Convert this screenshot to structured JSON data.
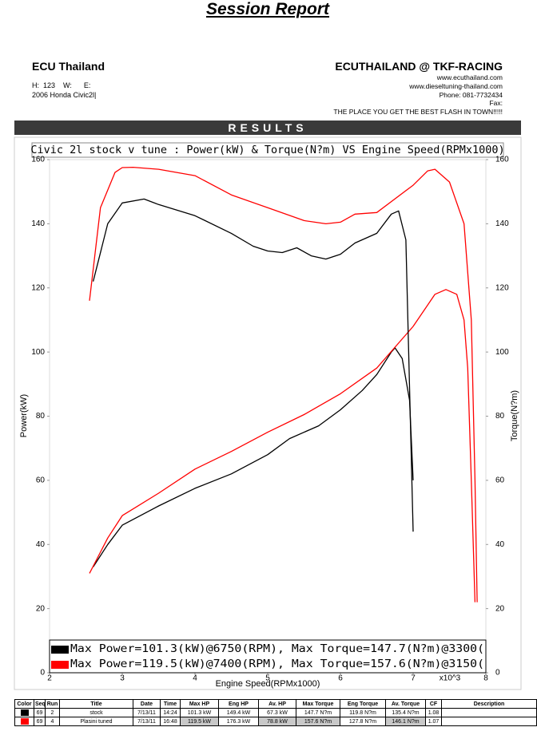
{
  "header": {
    "title": "Session Report",
    "company": "ECU Thailand",
    "vehicle_dims": "H:  123    W:      E:",
    "vehicle": "2006 Honda Civic2l|",
    "dealer": "ECUTHAILAND @ TKF-RACING",
    "contact": [
      "www.ecuthailand.com",
      "www.dieseltuning-thailand.com",
      "Phone: 081-7732434",
      "Fax:",
      "THE PLACE YOU GET THE BEST FLASH IN TOWN!!!!!"
    ],
    "section": "RESULTS"
  },
  "chart_data": {
    "type": "line",
    "title": "Civic 2l stock v tune : Power(kW) & Torque(N?m) VS Engine Speed(RPMx1000)",
    "xlabel": "Engine Speed(RPMx1000)",
    "xlabel_multiplier": "x10^3",
    "ylabel": "Power(kW)",
    "y2label": "Torque(N?m)",
    "xlim": [
      2,
      8
    ],
    "xticks": [
      2,
      3,
      4,
      5,
      6,
      7,
      8
    ],
    "ylim": [
      0,
      160
    ],
    "yticks": [
      0,
      20,
      40,
      60,
      80,
      100,
      120,
      140,
      160
    ],
    "y2lim": [
      0,
      160
    ],
    "y2ticks": [
      0,
      20,
      40,
      60,
      80,
      100,
      120,
      140,
      160
    ],
    "grid": false,
    "series": [
      {
        "color": "#000000",
        "x": [
          2.6,
          2.8,
          3.0,
          3.5,
          4.0,
          4.5,
          5.0,
          5.3,
          5.7,
          6.0,
          6.3,
          6.5,
          6.7,
          6.75,
          6.85,
          6.95,
          7.0
        ],
        "values": [
          33,
          40,
          46,
          52,
          57.5,
          62,
          68,
          73,
          77,
          82,
          88,
          93,
          100,
          101.3,
          98,
          85,
          60
        ]
      },
      {
        "color": "#ff0000",
        "x": [
          2.55,
          2.8,
          3.0,
          3.5,
          4.0,
          4.5,
          5.0,
          5.5,
          6.0,
          6.5,
          7.0,
          7.3,
          7.45,
          7.6,
          7.7,
          7.75,
          7.8,
          7.85
        ],
        "values": [
          31,
          42,
          49,
          56,
          63.5,
          69,
          75,
          80.5,
          87,
          95,
          108,
          118,
          119.5,
          118,
          110,
          95,
          60,
          22
        ]
      },
      {
        "color": "#000000",
        "axis": "y2",
        "x": [
          2.6,
          2.8,
          3.0,
          3.3,
          3.5,
          4.0,
          4.5,
          4.8,
          5.0,
          5.2,
          5.4,
          5.6,
          5.8,
          6.0,
          6.2,
          6.5,
          6.7,
          6.8,
          6.9,
          7.0
        ],
        "values": [
          122,
          140,
          146.5,
          147.7,
          146,
          142.5,
          137,
          133,
          131.5,
          131,
          132.5,
          130,
          129,
          130.5,
          134,
          137,
          143,
          144,
          135,
          44
        ]
      },
      {
        "color": "#ff0000",
        "axis": "y2",
        "x": [
          2.55,
          2.7,
          2.9,
          3.0,
          3.15,
          3.5,
          4.0,
          4.5,
          5.0,
          5.5,
          5.8,
          6.0,
          6.2,
          6.5,
          7.0,
          7.2,
          7.3,
          7.5,
          7.7,
          7.8,
          7.85,
          7.88
        ],
        "values": [
          116,
          145,
          156,
          157.5,
          157.6,
          157,
          155,
          149,
          145,
          141,
          140,
          140.5,
          143,
          143.5,
          152,
          156.5,
          157,
          153,
          140,
          110,
          60,
          22
        ]
      }
    ],
    "legend": [
      {
        "color": "#000000",
        "text": "Max Power=101.3(kW)@6750(RPM), Max Torque=147.7(N?m)@3300("
      },
      {
        "color": "#ff0000",
        "text": "Max Power=119.5(kW)@7400(RPM), Max Torque=157.6(N?m)@3150("
      }
    ]
  },
  "table": {
    "columns": [
      "Color",
      "Seq",
      "Run",
      "Title",
      "Date",
      "Time",
      "Max HP",
      "Eng HP",
      "Av. HP",
      "Max Torque",
      "Eng Torque",
      "Av. Torque",
      "CF",
      "Description"
    ],
    "rows": [
      {
        "color": "#000000",
        "cells": [
          "69",
          "2",
          "stock",
          "7/13/11",
          "14:24",
          "101.3 kW",
          "149.4 kW",
          "67.3 kW",
          "147.7 N?m",
          "119.8 N?m",
          "135.4 N?m",
          "1.08"
        ]
      },
      {
        "color": "#ff0000",
        "cells": [
          "69",
          "4",
          "Plasini tuned",
          "7/13/11",
          "16:48",
          "119.5 kW",
          "176.3 kW",
          "78.8 kW",
          "157.6 N?m",
          "127.8 N?m",
          "146.1 N?m",
          "1.07"
        ]
      }
    ]
  }
}
